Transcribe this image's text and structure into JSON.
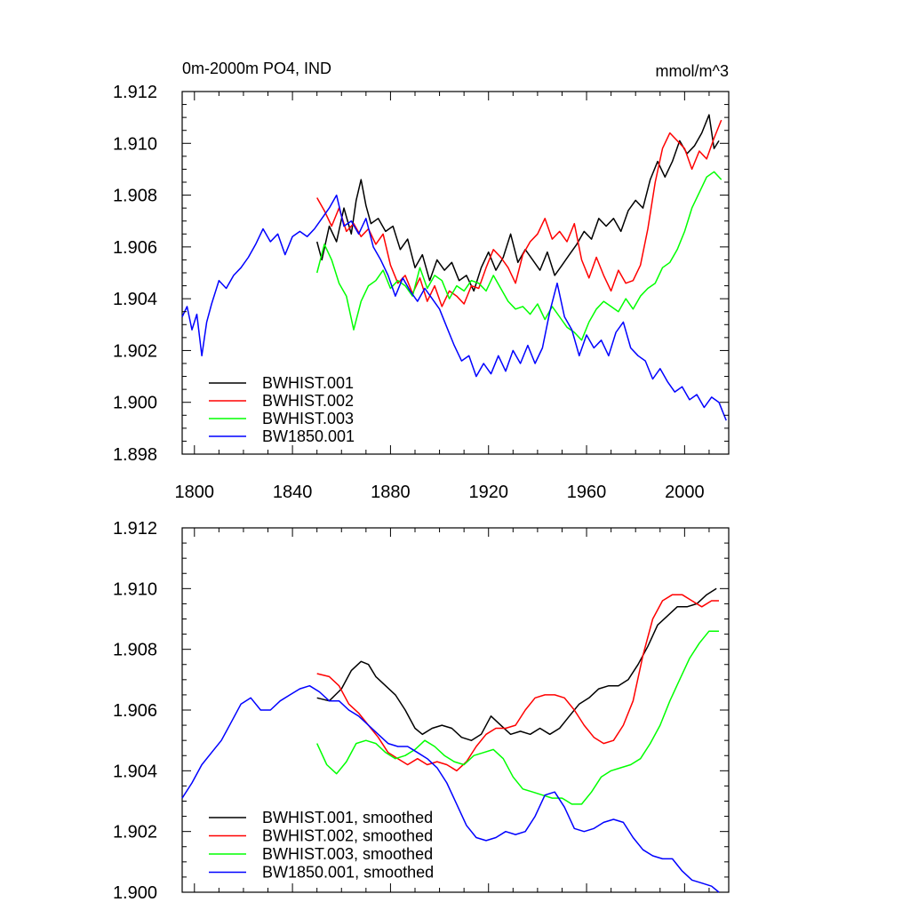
{
  "chart_data": [
    {
      "type": "line",
      "title_left": "0m-2000m PO4, IND",
      "title_right": "mmol/m^3",
      "xlabel": "",
      "ylabel": "",
      "xlim": [
        1795,
        2018
      ],
      "ylim": [
        1.898,
        1.912
      ],
      "x_ticks": [
        "1800",
        "1840",
        "1880",
        "1920",
        "1960",
        "2000"
      ],
      "y_ticks": [
        "1.898",
        "1.900",
        "1.902",
        "1.904",
        "1.906",
        "1.908",
        "1.910",
        "1.912"
      ],
      "legend": "bottom-left",
      "series": [
        {
          "name": "BWHIST.001",
          "color": "#000000",
          "x": [
            1850,
            1852,
            1855,
            1858,
            1861,
            1864,
            1866,
            1868,
            1870,
            1872,
            1875,
            1878,
            1881,
            1884,
            1887,
            1890,
            1893,
            1896,
            1899,
            1902,
            1905,
            1908,
            1911,
            1914,
            1917,
            1920,
            1923,
            1926,
            1929,
            1932,
            1935,
            1938,
            1941,
            1944,
            1947,
            1950,
            1953,
            1956,
            1959,
            1962,
            1965,
            1968,
            1971,
            1974,
            1977,
            1980,
            1983,
            1986,
            1989,
            1992,
            1995,
            1998,
            2001,
            2004,
            2007,
            2010,
            2012,
            2014
          ],
          "y": [
            1.9062,
            1.9055,
            1.9068,
            1.9062,
            1.9075,
            1.9065,
            1.9078,
            1.9086,
            1.9076,
            1.9069,
            1.9071,
            1.9066,
            1.9068,
            1.9059,
            1.9063,
            1.9052,
            1.9057,
            1.9047,
            1.9055,
            1.9051,
            1.9054,
            1.9047,
            1.9049,
            1.9043,
            1.9052,
            1.9058,
            1.9051,
            1.9056,
            1.9065,
            1.9054,
            1.9059,
            1.9055,
            1.9051,
            1.9058,
            1.9049,
            1.9053,
            1.9057,
            1.9061,
            1.9066,
            1.9063,
            1.9071,
            1.9068,
            1.9071,
            1.9066,
            1.9074,
            1.9078,
            1.9075,
            1.9086,
            1.9093,
            1.9087,
            1.9093,
            1.9101,
            1.9096,
            1.9099,
            1.9104,
            1.9111,
            1.9098,
            1.9101
          ]
        },
        {
          "name": "BWHIST.002",
          "color": "#ff0000",
          "x": [
            1850,
            1853,
            1856,
            1859,
            1862,
            1865,
            1868,
            1871,
            1874,
            1877,
            1880,
            1883,
            1886,
            1889,
            1892,
            1895,
            1898,
            1901,
            1904,
            1907,
            1910,
            1913,
            1916,
            1919,
            1922,
            1925,
            1928,
            1931,
            1934,
            1937,
            1940,
            1943,
            1946,
            1949,
            1952,
            1955,
            1958,
            1961,
            1964,
            1967,
            1970,
            1973,
            1976,
            1979,
            1982,
            1985,
            1988,
            1991,
            1994,
            1997,
            2000,
            2003,
            2006,
            2009,
            2012,
            2015
          ],
          "y": [
            1.9079,
            1.9074,
            1.9068,
            1.9075,
            1.9066,
            1.9069,
            1.9064,
            1.9067,
            1.9061,
            1.9065,
            1.9053,
            1.9046,
            1.9049,
            1.9042,
            1.9048,
            1.9039,
            1.9045,
            1.9037,
            1.9043,
            1.9041,
            1.9038,
            1.9045,
            1.9044,
            1.9052,
            1.9059,
            1.9056,
            1.9052,
            1.9046,
            1.9057,
            1.9062,
            1.9065,
            1.9071,
            1.9063,
            1.9066,
            1.9062,
            1.9069,
            1.9055,
            1.9048,
            1.9056,
            1.9049,
            1.9043,
            1.9051,
            1.9046,
            1.9047,
            1.9053,
            1.9067,
            1.9085,
            1.9098,
            1.9104,
            1.9101,
            1.9098,
            1.909,
            1.9097,
            1.9094,
            1.9102,
            1.9109
          ]
        },
        {
          "name": "BWHIST.003",
          "color": "#00ff00",
          "x": [
            1850,
            1853,
            1856,
            1859,
            1862,
            1865,
            1868,
            1871,
            1874,
            1877,
            1880,
            1883,
            1886,
            1889,
            1892,
            1895,
            1898,
            1901,
            1904,
            1907,
            1910,
            1913,
            1916,
            1919,
            1922,
            1925,
            1928,
            1931,
            1934,
            1937,
            1940,
            1943,
            1946,
            1949,
            1952,
            1955,
            1958,
            1961,
            1964,
            1967,
            1970,
            1973,
            1976,
            1979,
            1982,
            1985,
            1988,
            1991,
            1994,
            1997,
            2000,
            2003,
            2006,
            2009,
            2012,
            2015
          ],
          "y": [
            1.905,
            1.9061,
            1.9055,
            1.9046,
            1.9041,
            1.9028,
            1.9039,
            1.9045,
            1.9047,
            1.9051,
            1.9044,
            1.9047,
            1.9045,
            1.9041,
            1.9052,
            1.9044,
            1.9049,
            1.9047,
            1.904,
            1.9045,
            1.9043,
            1.9047,
            1.9046,
            1.9043,
            1.9049,
            1.9044,
            1.9039,
            1.9036,
            1.9037,
            1.9034,
            1.9038,
            1.9032,
            1.9037,
            1.9033,
            1.9029,
            1.9027,
            1.9024,
            1.9031,
            1.9036,
            1.9039,
            1.9037,
            1.9035,
            1.904,
            1.9036,
            1.9041,
            1.9044,
            1.9046,
            1.9052,
            1.9054,
            1.9059,
            1.9066,
            1.9075,
            1.9081,
            1.9087,
            1.9089,
            1.9086
          ]
        },
        {
          "name": "BW1850.001",
          "color": "#0000ff",
          "x": [
            1795,
            1797,
            1799,
            1801,
            1803,
            1805,
            1807,
            1810,
            1813,
            1816,
            1819,
            1822,
            1825,
            1828,
            1831,
            1834,
            1837,
            1840,
            1843,
            1846,
            1849,
            1852,
            1855,
            1858,
            1861,
            1864,
            1867,
            1870,
            1873,
            1876,
            1879,
            1882,
            1885,
            1888,
            1891,
            1894,
            1897,
            1900,
            1903,
            1906,
            1909,
            1912,
            1915,
            1918,
            1921,
            1924,
            1927,
            1930,
            1933,
            1936,
            1939,
            1942,
            1945,
            1948,
            1951,
            1954,
            1957,
            1960,
            1963,
            1966,
            1969,
            1972,
            1975,
            1978,
            1981,
            1984,
            1987,
            1990,
            1993,
            1996,
            1999,
            2002,
            2005,
            2008,
            2011,
            2014,
            2017
          ],
          "y": [
            1.9033,
            1.9037,
            1.9028,
            1.9034,
            1.9018,
            1.9031,
            1.9038,
            1.9047,
            1.9044,
            1.9049,
            1.9052,
            1.9056,
            1.9061,
            1.9067,
            1.9062,
            1.9065,
            1.9057,
            1.9064,
            1.9066,
            1.9064,
            1.9067,
            1.9071,
            1.9075,
            1.908,
            1.9068,
            1.907,
            1.9065,
            1.9071,
            1.906,
            1.9055,
            1.9049,
            1.9041,
            1.9048,
            1.9043,
            1.9039,
            1.9044,
            1.904,
            1.9036,
            1.9029,
            1.9022,
            1.9016,
            1.9018,
            1.901,
            1.9015,
            1.9011,
            1.9018,
            1.9012,
            1.902,
            1.9015,
            1.9022,
            1.9015,
            1.9021,
            1.9035,
            1.9046,
            1.9033,
            1.9028,
            1.9018,
            1.9026,
            1.9021,
            1.9024,
            1.9018,
            1.9027,
            1.9031,
            1.9021,
            1.9018,
            1.9016,
            1.9009,
            1.9013,
            1.9008,
            1.9004,
            1.9006,
            1.9001,
            1.9003,
            1.8998,
            1.9002,
            1.9,
            1.8993
          ]
        }
      ]
    },
    {
      "type": "line",
      "xlim": [
        1795,
        2018
      ],
      "ylim": [
        1.9,
        1.912
      ],
      "x_ticks": [],
      "y_ticks": [
        "1.900",
        "1.902",
        "1.904",
        "1.906",
        "1.908",
        "1.910",
        "1.912"
      ],
      "legend": "bottom-left",
      "series": [
        {
          "name": "BWHIST.001, smoothed",
          "color": "#000000",
          "x": [
            1850,
            1855,
            1860,
            1864,
            1868,
            1871,
            1874,
            1878,
            1882,
            1886,
            1890,
            1893,
            1897,
            1901,
            1905,
            1909,
            1913,
            1917,
            1921,
            1925,
            1929,
            1933,
            1937,
            1941,
            1945,
            1949,
            1953,
            1957,
            1961,
            1965,
            1969,
            1973,
            1977,
            1981,
            1985,
            1989,
            1993,
            1997,
            2001,
            2005,
            2009,
            2013
          ],
          "y": [
            1.9064,
            1.9063,
            1.9067,
            1.9073,
            1.9076,
            1.9075,
            1.9071,
            1.9068,
            1.9065,
            1.906,
            1.9054,
            1.9052,
            1.9054,
            1.9055,
            1.9054,
            1.9051,
            1.905,
            1.9052,
            1.9058,
            1.9055,
            1.9052,
            1.9053,
            1.9052,
            1.9054,
            1.9052,
            1.9054,
            1.9058,
            1.9062,
            1.9064,
            1.9067,
            1.9068,
            1.9068,
            1.907,
            1.9075,
            1.9081,
            1.9088,
            1.9091,
            1.9094,
            1.9094,
            1.9095,
            1.9098,
            1.91
          ]
        },
        {
          "name": "BWHIST.002, smoothed",
          "color": "#ff0000",
          "x": [
            1850,
            1855,
            1859,
            1863,
            1867,
            1871,
            1875,
            1879,
            1883,
            1887,
            1891,
            1895,
            1899,
            1903,
            1907,
            1911,
            1915,
            1919,
            1923,
            1927,
            1931,
            1935,
            1939,
            1943,
            1947,
            1951,
            1955,
            1959,
            1963,
            1967,
            1971,
            1975,
            1979,
            1983,
            1987,
            1991,
            1995,
            1999,
            2003,
            2007,
            2011,
            2014
          ],
          "y": [
            1.9072,
            1.9071,
            1.9068,
            1.9062,
            1.9059,
            1.9055,
            1.9051,
            1.9046,
            1.9044,
            1.9042,
            1.9044,
            1.9042,
            1.9043,
            1.9042,
            1.904,
            1.9043,
            1.9048,
            1.9052,
            1.9054,
            1.9054,
            1.9055,
            1.906,
            1.9064,
            1.9065,
            1.9065,
            1.9064,
            1.906,
            1.9055,
            1.9051,
            1.9049,
            1.905,
            1.9055,
            1.9063,
            1.9078,
            1.909,
            1.9096,
            1.9098,
            1.9098,
            1.9096,
            1.9094,
            1.9096,
            1.9096
          ]
        },
        {
          "name": "BWHIST.003, smoothed",
          "color": "#00ff00",
          "x": [
            1850,
            1854,
            1858,
            1862,
            1866,
            1870,
            1874,
            1878,
            1882,
            1886,
            1890,
            1894,
            1898,
            1902,
            1906,
            1910,
            1914,
            1918,
            1922,
            1926,
            1930,
            1934,
            1938,
            1942,
            1946,
            1950,
            1954,
            1958,
            1962,
            1966,
            1970,
            1974,
            1978,
            1982,
            1986,
            1990,
            1994,
            1998,
            2002,
            2006,
            2010,
            2014
          ],
          "y": [
            1.9049,
            1.9042,
            1.9039,
            1.9043,
            1.9049,
            1.905,
            1.9049,
            1.9046,
            1.9044,
            1.9045,
            1.9047,
            1.905,
            1.9048,
            1.9045,
            1.9043,
            1.9042,
            1.9045,
            1.9046,
            1.9047,
            1.9044,
            1.9038,
            1.9034,
            1.9033,
            1.9032,
            1.9031,
            1.9031,
            1.9029,
            1.9029,
            1.9033,
            1.9038,
            1.904,
            1.9041,
            1.9042,
            1.9044,
            1.9049,
            1.9055,
            1.9063,
            1.907,
            1.9077,
            1.9082,
            1.9086,
            1.9086
          ]
        },
        {
          "name": "BW1850.001, smoothed",
          "color": "#0000ff",
          "x": [
            1795,
            1799,
            1803,
            1807,
            1811,
            1815,
            1819,
            1823,
            1827,
            1831,
            1835,
            1839,
            1843,
            1847,
            1851,
            1855,
            1859,
            1863,
            1867,
            1871,
            1875,
            1879,
            1883,
            1887,
            1891,
            1895,
            1899,
            1903,
            1907,
            1911,
            1915,
            1919,
            1923,
            1927,
            1931,
            1935,
            1939,
            1943,
            1947,
            1951,
            1955,
            1959,
            1963,
            1967,
            1971,
            1975,
            1979,
            1983,
            1987,
            1991,
            1995,
            1999,
            2003,
            2007,
            2011,
            2014
          ],
          "y": [
            1.9031,
            1.9036,
            1.9042,
            1.9046,
            1.905,
            1.9056,
            1.9062,
            1.9064,
            1.906,
            1.906,
            1.9063,
            1.9065,
            1.9067,
            1.9068,
            1.9066,
            1.9063,
            1.9063,
            1.906,
            1.9058,
            1.9055,
            1.9052,
            1.9049,
            1.9048,
            1.9048,
            1.9046,
            1.9044,
            1.9041,
            1.9036,
            1.9029,
            1.9022,
            1.9018,
            1.9017,
            1.9018,
            1.902,
            1.9019,
            1.902,
            1.9025,
            1.9032,
            1.9033,
            1.9028,
            1.9021,
            1.902,
            1.9021,
            1.9023,
            1.9024,
            1.9023,
            1.9018,
            1.9014,
            1.9012,
            1.9011,
            1.9011,
            1.9007,
            1.9004,
            1.9003,
            1.9002,
            1.9
          ]
        }
      ]
    }
  ]
}
